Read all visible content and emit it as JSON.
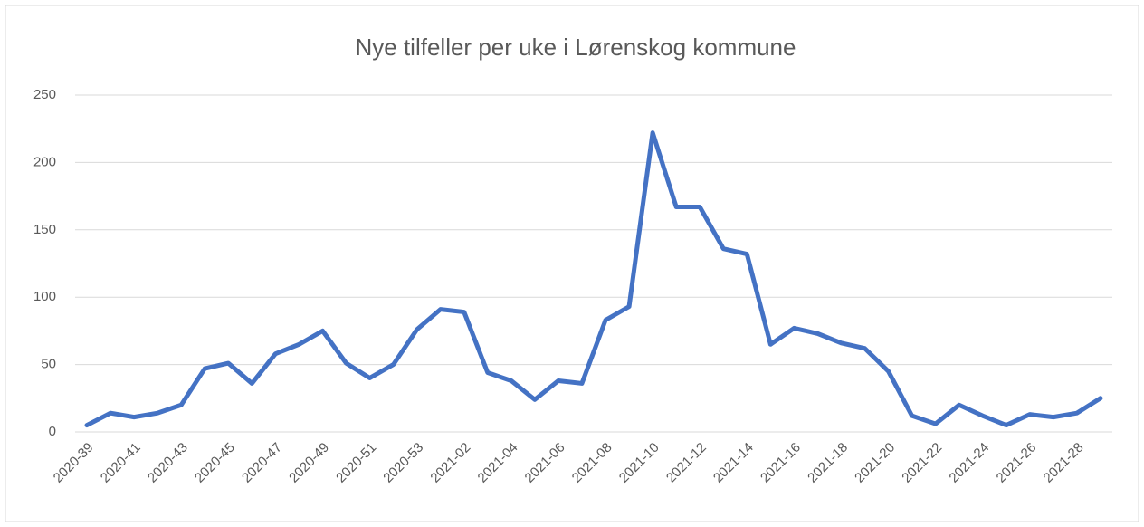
{
  "chart_data": {
    "type": "line",
    "title": "Nye tilfeller per uke i Lørenskog kommune",
    "categories": [
      "2020-39",
      null,
      "2020-41",
      null,
      "2020-43",
      null,
      "2020-45",
      null,
      "2020-47",
      null,
      "2020-49",
      null,
      "2020-51",
      null,
      "2020-53",
      null,
      "2021-02",
      null,
      "2021-04",
      null,
      "2021-06",
      null,
      "2021-08",
      null,
      "2021-10",
      null,
      "2021-12",
      null,
      "2021-14",
      null,
      "2021-16",
      null,
      "2021-18",
      null,
      "2021-20",
      null,
      "2021-22",
      null,
      "2021-24",
      null,
      "2021-26",
      null,
      "2021-28",
      null
    ],
    "series": [
      {
        "name": "Nye tilfeller",
        "color": "#4472c4",
        "values": [
          5,
          14,
          11,
          14,
          20,
          47,
          51,
          36,
          58,
          65,
          75,
          51,
          40,
          50,
          76,
          91,
          89,
          44,
          38,
          24,
          38,
          36,
          83,
          93,
          222,
          167,
          167,
          136,
          132,
          65,
          77,
          73,
          66,
          62,
          45,
          12,
          6,
          20,
          12,
          5,
          13,
          11,
          14,
          25
        ]
      }
    ],
    "ylim": [
      0,
      250
    ],
    "yticks": [
      0,
      50,
      100,
      150,
      200,
      250
    ],
    "grid": true
  }
}
